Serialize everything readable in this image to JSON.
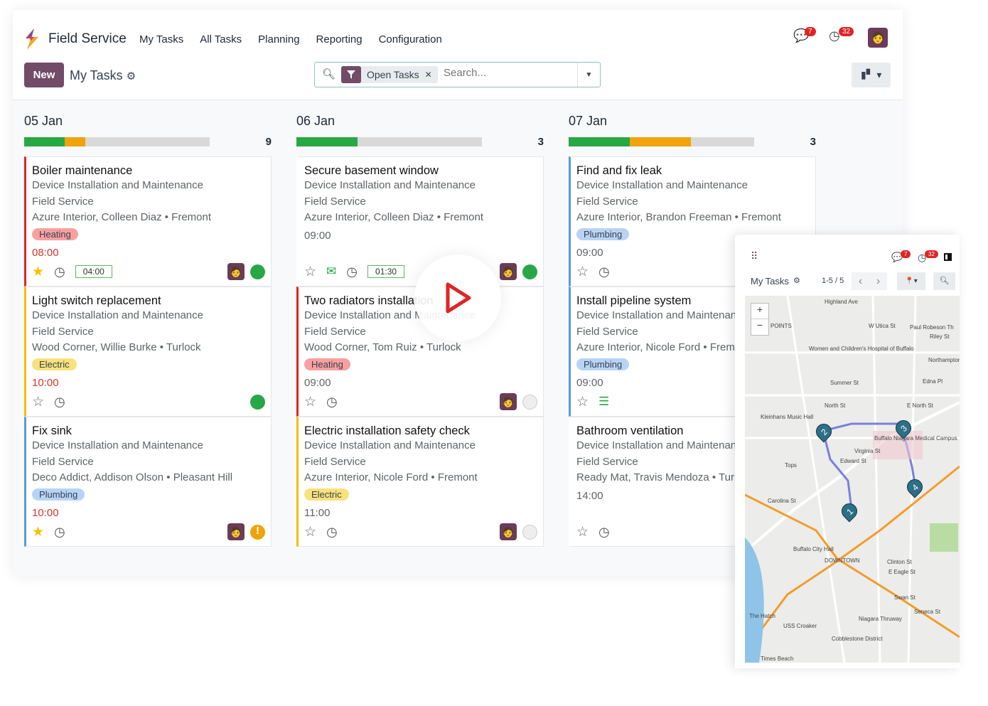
{
  "app": {
    "brand": "Field Service",
    "nav": [
      "My Tasks",
      "All Tasks",
      "Planning",
      "Reporting",
      "Configuration"
    ],
    "messages_count": "7",
    "activities_count": "32"
  },
  "control": {
    "new_label": "New",
    "title": "My Tasks",
    "facet": "Open Tasks",
    "search_placeholder": "Search..."
  },
  "colors": {
    "accent": "#714b67",
    "green": "#28a745",
    "orange": "#f0a30a",
    "red": "#e02424"
  },
  "columns": [
    {
      "title": "05 Jan",
      "count": "9",
      "progress": {
        "green": 22,
        "orange": 11
      },
      "cards": [
        {
          "name": "Boiler maintenance",
          "project": "Device Installation and Maintenance",
          "service": "Field Service",
          "customer": "Azure Interior, Colleen Diaz • Fremont",
          "tag": "Heating",
          "time": "08:00",
          "overdue": true,
          "starred": true,
          "duration": "04:00",
          "avatar": true,
          "status": "green",
          "color": "#e02424"
        },
        {
          "name": "Light switch replacement",
          "project": "Device Installation and Maintenance",
          "service": "Field Service",
          "customer": "Wood Corner, Willie Burke • Turlock",
          "tag": "Electric",
          "time": "10:00",
          "overdue": true,
          "starred": false,
          "status": "green",
          "color": "#f0c000"
        },
        {
          "name": "Fix sink",
          "project": "Device Installation and Maintenance",
          "service": "Field Service",
          "customer": "Deco Addict, Addison Olson • Pleasant Hill",
          "tag": "Plumbing",
          "time": "10:00",
          "overdue": true,
          "starred": true,
          "avatar": true,
          "status": "warning",
          "color": "#5b9bd5"
        }
      ]
    },
    {
      "title": "06 Jan",
      "count": "3",
      "progress": {
        "green": 33,
        "orange": 0
      },
      "cards": [
        {
          "name": "Secure basement window",
          "project": "Device Installation and Maintenance",
          "service": "Field Service",
          "customer": "Azure Interior, Colleen Diaz • Fremont",
          "time": "09:00",
          "starred": false,
          "email": true,
          "duration": "01:30",
          "avatar": true,
          "status": "green",
          "color": "transparent"
        },
        {
          "name": "Two radiators installation",
          "project": "Device Installation and Maintenance",
          "service": "Field Service",
          "customer": "Wood Corner, Tom Ruiz • Turlock",
          "tag": "Heating",
          "time": "09:00",
          "starred": false,
          "avatar": true,
          "status": "grey",
          "color": "#e02424"
        },
        {
          "name": "Electric installation safety check",
          "project": "Device Installation and Maintenance",
          "service": "Field Service",
          "customer": "Azure Interior, Nicole Ford • Fremont",
          "tag": "Electric",
          "time": "11:00",
          "starred": false,
          "avatar": true,
          "status": "grey",
          "color": "#f0c000"
        }
      ]
    },
    {
      "title": "07 Jan",
      "count": "3",
      "progress": {
        "green": 33,
        "orange": 33
      },
      "cards": [
        {
          "name": "Find and fix leak",
          "project": "Device Installation and Maintenance",
          "service": "Field Service",
          "customer": "Azure Interior, Brandon Freeman • Fremont",
          "tag": "Plumbing",
          "time": "09:00",
          "starred": false,
          "color": "#5b9bd5"
        },
        {
          "name": "Install pipeline system",
          "project": "Device Installation and Maintenance",
          "service": "Field Service",
          "customer": "Azure Interior, Nicole Ford • Fremont",
          "tag": "Plumbing",
          "time": "09:00",
          "starred": false,
          "list": true,
          "color": "#5b9bd5"
        },
        {
          "name": "Bathroom ventilation",
          "project": "Device Installation and Maintenance",
          "service": "Field Service",
          "customer": "Ready Mat, Travis Mendoza • Turlock",
          "time": "14:00",
          "starred": false,
          "color": "transparent"
        }
      ]
    }
  ],
  "mobile": {
    "title": "My Tasks",
    "pager": "1-5 / 5",
    "messages_count": "7",
    "activities_count": "32",
    "map_labels": [
      "Highland Ave",
      "W Utica St",
      "Paul Robeson Th",
      "Riley St",
      "Women and Children's Hospital of Buffalo",
      "Northampton St",
      "Summer St",
      "Edna Pl",
      "North St",
      "E North St",
      "Kleinhans Music Hall",
      "Buffalo Niagara Medical Campus",
      "Virginia St",
      "Edward St",
      "Tops",
      "Carolina St",
      "Buffalo City Hall",
      "DOWNTOWN",
      "Clinton St",
      "E Eagle St",
      "Swan St",
      "Seneca St",
      "Niagara Thruway",
      "USS Croaker",
      "The Hatch",
      "Cobblestone District",
      "Times Beach",
      "POINTS"
    ],
    "markers": [
      "1",
      "2",
      "3",
      "4"
    ]
  }
}
